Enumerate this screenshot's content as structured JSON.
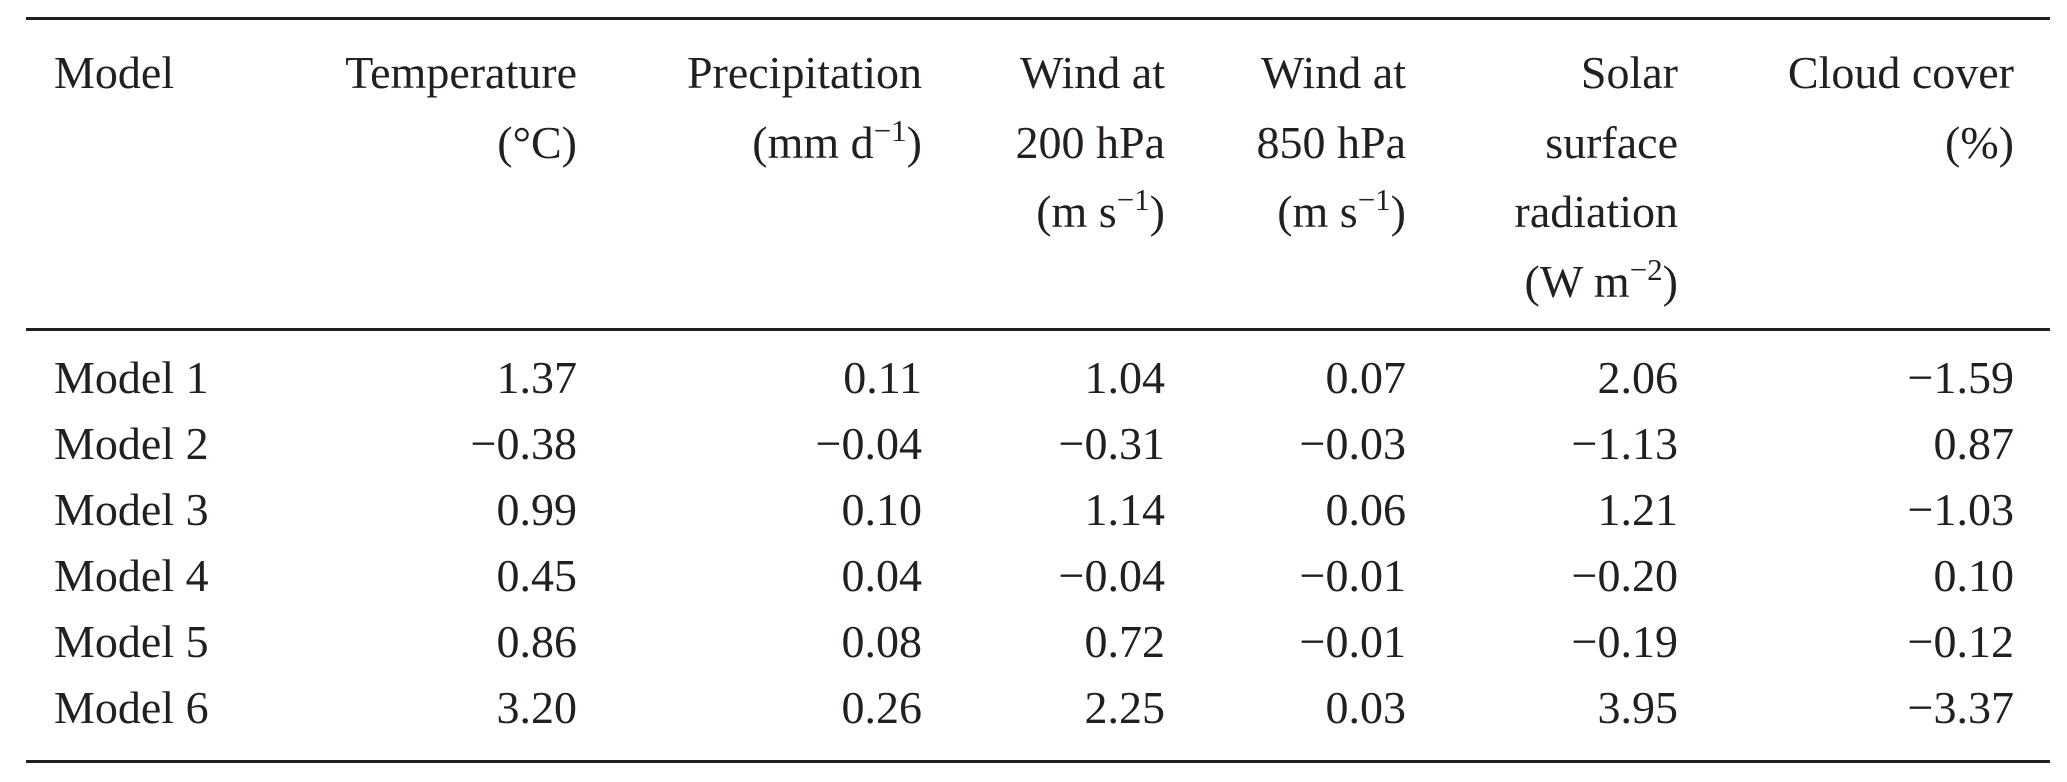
{
  "table": {
    "headers": [
      {
        "lines": [
          "Model"
        ]
      },
      {
        "lines": [
          "Temperature",
          "(°C)"
        ]
      },
      {
        "lines": [
          "Precipitation",
          "(mm d<sup>−1</sup>)"
        ]
      },
      {
        "lines": [
          "Wind at",
          "200 hPa",
          "(m s<sup>−1</sup>)"
        ]
      },
      {
        "lines": [
          "Wind at",
          "850 hPa",
          "(m s<sup>−1</sup>)"
        ]
      },
      {
        "lines": [
          "Solar",
          "surface",
          "radiation",
          "(W m<sup>−2</sup>)"
        ]
      },
      {
        "lines": [
          "Cloud cover",
          "(%)"
        ]
      }
    ],
    "rows": [
      [
        "Model 1",
        "1.37",
        "0.11",
        "1.04",
        "0.07",
        "2.06",
        "−1.59"
      ],
      [
        "Model 2",
        "−0.38",
        "−0.04",
        "−0.31",
        "−0.03",
        "−1.13",
        "0.87"
      ],
      [
        "Model 3",
        "0.99",
        "0.10",
        "1.14",
        "0.06",
        "1.21",
        "−1.03"
      ],
      [
        "Model 4",
        "0.45",
        "0.04",
        "−0.04",
        "−0.01",
        "−0.20",
        "0.10"
      ],
      [
        "Model 5",
        "0.86",
        "0.08",
        "0.72",
        "−0.01",
        "−0.19",
        "−0.12"
      ],
      [
        "Model 6",
        "3.20",
        "0.26",
        "2.25",
        "0.03",
        "3.95",
        "−3.37"
      ]
    ]
  }
}
